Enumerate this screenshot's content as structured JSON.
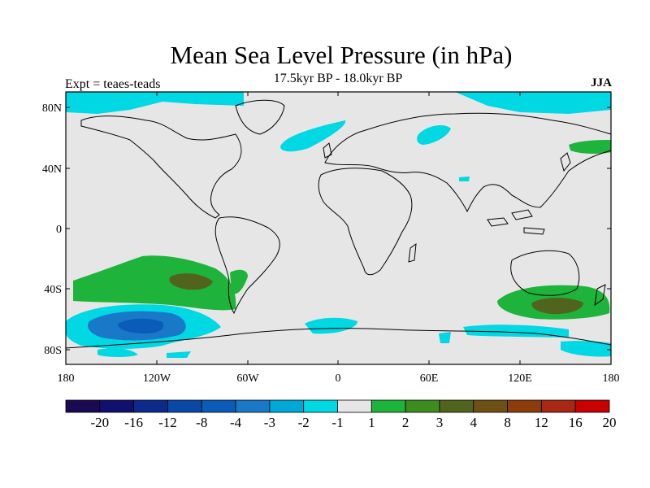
{
  "title": "Mean Sea Level Pressure (in hPa)",
  "subtitle": "17.5kyr BP - 18.0kyr BP",
  "left_label": "Expt = teaes-teads",
  "right_label": "JJA",
  "lat_ticks": [
    "80N",
    "40N",
    "0",
    "40S",
    "80S"
  ],
  "lon_ticks": [
    "180",
    "120W",
    "60W",
    "0",
    "60E",
    "120E",
    "180"
  ],
  "colorbar": {
    "labels": [
      "-20",
      "-16",
      "-12",
      "-8",
      "-4",
      "-3",
      "-2",
      "-1",
      "1",
      "2",
      "3",
      "4",
      "8",
      "12",
      "16",
      "20"
    ],
    "colors": [
      "#1a0a54",
      "#101070",
      "#0c2a8c",
      "#0a48a8",
      "#0a5cb8",
      "#1a78c8",
      "#00a8d8",
      "#00d8e4",
      "#e6e6e6",
      "#1eb43c",
      "#3c8c1e",
      "#50641e",
      "#6e5014",
      "#8c3c0a",
      "#a82814",
      "#c80000"
    ]
  },
  "colors": {
    "background": "#e6e6e6",
    "coast": "#000000"
  }
}
